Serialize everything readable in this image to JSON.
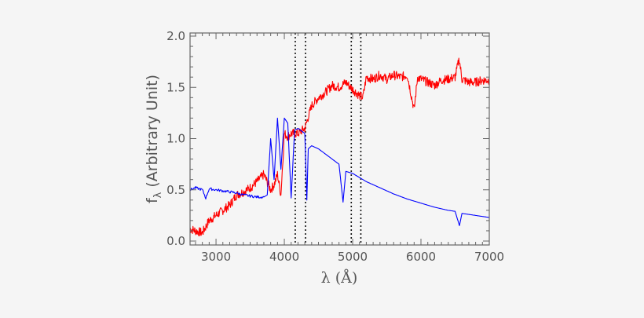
{
  "chart_data": {
    "type": "line",
    "title": "",
    "xlabel": "λ (Å)",
    "ylabel_main": "f",
    "ylabel_sub": "λ",
    "ylabel_rest": "(Arbitrary Unit)",
    "xlim": [
      2620,
      7000
    ],
    "ylim": [
      0.0,
      2.0
    ],
    "x_ticks": [
      3000,
      4000,
      5000,
      6000,
      7000
    ],
    "x_tick_labels": [
      "3000",
      "4000",
      "5000",
      "6000",
      "7000"
    ],
    "y_ticks": [
      0.0,
      0.5,
      1.0,
      1.5,
      2.0
    ],
    "y_tick_labels": [
      "0.0",
      "0.5",
      "1.0",
      "1.5",
      "2.0"
    ],
    "grid": false,
    "legend": null,
    "vertical_dotted_lines": [
      4160,
      4310,
      4980,
      5120
    ],
    "series": [
      {
        "name": "red spectrum",
        "color": "#ff0000",
        "x": [
          2620,
          2700,
          2800,
          2900,
          3000,
          3100,
          3200,
          3300,
          3400,
          3500,
          3600,
          3700,
          3800,
          3850,
          3900,
          3950,
          4000,
          4050,
          4100,
          4200,
          4300,
          4400,
          4500,
          4600,
          4700,
          4800,
          4900,
          5000,
          5100,
          5150,
          5200,
          5300,
          5400,
          5500,
          5600,
          5700,
          5800,
          5900,
          5950,
          6000,
          6100,
          6200,
          6300,
          6400,
          6500,
          6560,
          6600,
          6700,
          6800,
          6900,
          7000
        ],
        "y": [
          0.12,
          0.1,
          0.08,
          0.2,
          0.25,
          0.3,
          0.35,
          0.45,
          0.48,
          0.52,
          0.58,
          0.65,
          0.5,
          0.55,
          0.65,
          0.45,
          1.05,
          1.02,
          1.05,
          1.05,
          1.1,
          1.32,
          1.4,
          1.45,
          1.52,
          1.5,
          1.55,
          1.48,
          1.42,
          1.4,
          1.6,
          1.58,
          1.62,
          1.58,
          1.62,
          1.6,
          1.62,
          1.28,
          1.6,
          1.58,
          1.55,
          1.52,
          1.57,
          1.58,
          1.6,
          1.78,
          1.58,
          1.55,
          1.55,
          1.57,
          1.57
        ]
      },
      {
        "name": "blue spectrum",
        "color": "#0000ff",
        "x": [
          2620,
          2700,
          2800,
          2850,
          2900,
          3000,
          3100,
          3200,
          3300,
          3400,
          3500,
          3600,
          3700,
          3750,
          3800,
          3850,
          3900,
          3950,
          4000,
          4050,
          4100,
          4150,
          4200,
          4300,
          4330,
          4350,
          4400,
          4500,
          4600,
          4700,
          4800,
          4860,
          4900,
          5000,
          5100,
          5200,
          5400,
          5600,
          5800,
          6000,
          6200,
          6400,
          6500,
          6563,
          6600,
          6700,
          6800,
          6900,
          7000
        ],
        "y": [
          0.5,
          0.52,
          0.5,
          0.42,
          0.51,
          0.5,
          0.49,
          0.48,
          0.47,
          0.45,
          0.44,
          0.43,
          0.43,
          0.45,
          1.0,
          0.6,
          1.2,
          0.7,
          1.2,
          1.15,
          0.42,
          1.08,
          1.1,
          1.05,
          0.4,
          0.9,
          0.93,
          0.9,
          0.85,
          0.8,
          0.75,
          0.38,
          0.68,
          0.66,
          0.62,
          0.58,
          0.52,
          0.46,
          0.41,
          0.37,
          0.33,
          0.3,
          0.29,
          0.15,
          0.27,
          0.26,
          0.25,
          0.24,
          0.23
        ]
      }
    ]
  }
}
